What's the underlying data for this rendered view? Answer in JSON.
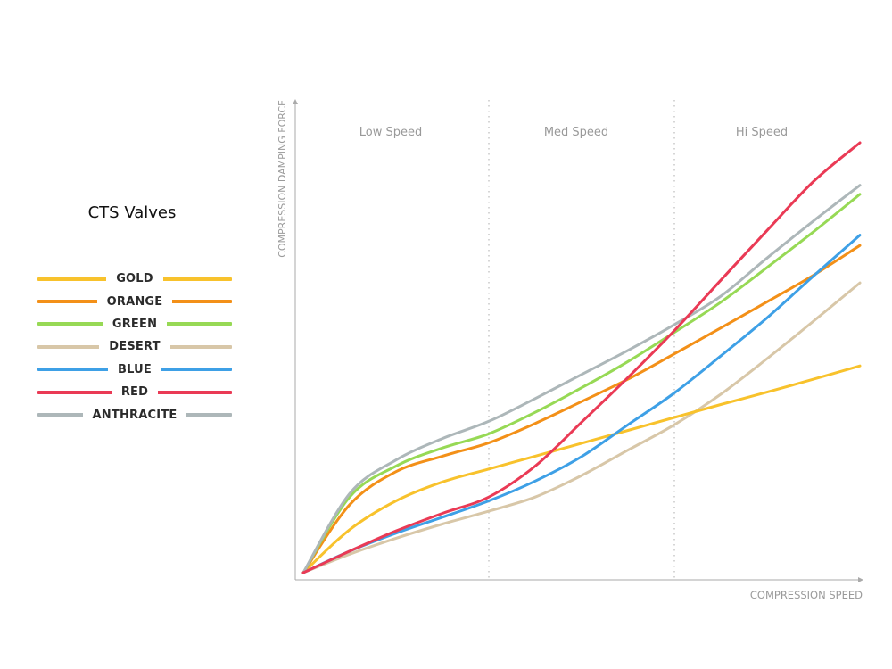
{
  "chart_data": {
    "type": "line",
    "title": "CTS Valves",
    "xlabel": "COMPRESSION SPEED",
    "ylabel": "COMPRESSION DAMPING FORCE",
    "regions": [
      "Low Speed",
      "Med Speed",
      "Hi Speed"
    ],
    "xlim": [
      0,
      3
    ],
    "ylim": [
      0,
      1
    ],
    "x": [
      0,
      0.25,
      0.5,
      0.75,
      1.0,
      1.25,
      1.5,
      1.75,
      2.0,
      2.25,
      2.5,
      2.75,
      3.0
    ],
    "legend_position": "left",
    "grid": false,
    "series": [
      {
        "name": "GOLD",
        "color": "#f8c22c",
        "values": [
          0,
          0.1,
          0.167,
          0.211,
          0.241,
          0.271,
          0.301,
          0.331,
          0.361,
          0.391,
          0.42,
          0.45,
          0.481
        ]
      },
      {
        "name": "ORANGE",
        "color": "#f39018",
        "values": [
          0,
          0.158,
          0.235,
          0.271,
          0.302,
          0.347,
          0.398,
          0.45,
          0.509,
          0.569,
          0.63,
          0.692,
          0.761
        ]
      },
      {
        "name": "GREEN",
        "color": "#97d955",
        "values": [
          0,
          0.176,
          0.248,
          0.29,
          0.323,
          0.373,
          0.43,
          0.491,
          0.559,
          0.629,
          0.71,
          0.793,
          0.88
        ]
      },
      {
        "name": "DESERT",
        "color": "#d8c7a8",
        "values": [
          0,
          0.043,
          0.08,
          0.113,
          0.143,
          0.176,
          0.226,
          0.285,
          0.344,
          0.415,
          0.498,
          0.585,
          0.674
        ]
      },
      {
        "name": "BLUE",
        "color": "#3ea0e6",
        "values": [
          0,
          0.05,
          0.092,
          0.129,
          0.167,
          0.213,
          0.27,
          0.344,
          0.418,
          0.504,
          0.593,
          0.69,
          0.785
        ]
      },
      {
        "name": "RED",
        "color": "#ea3a55",
        "values": [
          0,
          0.05,
          0.097,
          0.138,
          0.176,
          0.248,
          0.35,
          0.454,
          0.563,
          0.68,
          0.796,
          0.91,
          1.0
        ]
      },
      {
        "name": "ANTHRACITE",
        "color": "#adb7b9",
        "values": [
          0,
          0.184,
          0.262,
          0.312,
          0.352,
          0.405,
          0.461,
          0.517,
          0.577,
          0.643,
          0.732,
          0.818,
          0.901
        ]
      }
    ]
  }
}
